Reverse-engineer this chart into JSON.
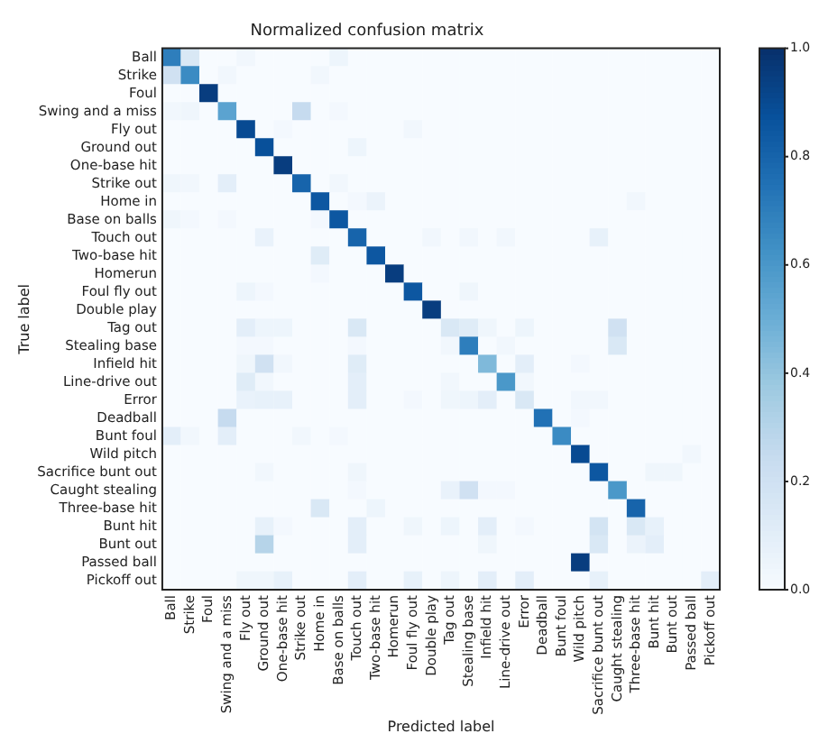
{
  "chart_data": {
    "type": "heatmap",
    "title": "Normalized confusion matrix",
    "xlabel": "Predicted label",
    "ylabel": "True label",
    "categories": [
      "Ball",
      "Strike",
      "Foul",
      "Swing and a miss",
      "Fly out",
      "Ground out",
      "One-base hit",
      "Strike out",
      "Home in",
      "Base on balls",
      "Touch out",
      "Two-base hit",
      "Homerun",
      "Foul fly out",
      "Double play",
      "Tag out",
      "Stealing base",
      "Infield hit",
      "Line-drive out",
      "Error",
      "Deadball",
      "Bunt foul",
      "Wild pitch",
      "Sacrifice bunt out",
      "Caught stealing",
      "Three-base hit",
      "Bunt hit",
      "Bunt out",
      "Passed ball",
      "Pickoff out"
    ],
    "y_categories": [
      "Ball",
      "Strike",
      "Foul",
      "Swing and a miss",
      "Fly out",
      "Ground out",
      "One-base hit",
      "Strike out",
      "Home in",
      "Base on balls",
      "Touch out",
      "Two-base hit",
      "Homerun",
      "Foul fly out",
      "Double play",
      "Tag out",
      "Stealing base",
      "Infield hit",
      "Line-drive out",
      "Error",
      "Deadball",
      "Bunt foul",
      "Wild pitch",
      "Sacrifice bunt out",
      "Caught stealing",
      "Three-base hit",
      "Bunt hit",
      "Bunt out",
      "Passed ball",
      "Pickoff out"
    ],
    "cells": [
      [
        0.7,
        0.15,
        0,
        0,
        0.03,
        0,
        0,
        0,
        0,
        0.05,
        0,
        0,
        0,
        0,
        0,
        0,
        0,
        0,
        0,
        0,
        0,
        0,
        0,
        0,
        0,
        0,
        0,
        0,
        0,
        0
      ],
      [
        0.2,
        0.65,
        0,
        0.03,
        0,
        0,
        0,
        0,
        0.03,
        0,
        0,
        0,
        0,
        0,
        0,
        0,
        0,
        0,
        0,
        0,
        0,
        0,
        0,
        0,
        0,
        0,
        0,
        0,
        0,
        0
      ],
      [
        0,
        0,
        0.95,
        0,
        0,
        0,
        0,
        0,
        0,
        0,
        0,
        0,
        0,
        0,
        0,
        0,
        0,
        0,
        0,
        0,
        0,
        0,
        0,
        0,
        0,
        0,
        0,
        0,
        0,
        0
      ],
      [
        0.03,
        0.04,
        0,
        0.55,
        0,
        0,
        0,
        0.25,
        0,
        0.02,
        0,
        0,
        0,
        0,
        0,
        0,
        0,
        0,
        0,
        0,
        0,
        0,
        0,
        0,
        0,
        0,
        0,
        0,
        0,
        0
      ],
      [
        0,
        0,
        0,
        0,
        0.9,
        0,
        0.02,
        0,
        0,
        0,
        0,
        0,
        0,
        0.03,
        0,
        0,
        0,
        0,
        0,
        0,
        0,
        0,
        0,
        0,
        0,
        0,
        0,
        0,
        0,
        0
      ],
      [
        0,
        0,
        0,
        0,
        0,
        0.88,
        0,
        0,
        0,
        0,
        0.05,
        0,
        0,
        0,
        0,
        0,
        0,
        0,
        0,
        0,
        0,
        0,
        0,
        0,
        0,
        0,
        0,
        0,
        0,
        0
      ],
      [
        0,
        0,
        0,
        0,
        0,
        0,
        0.95,
        0,
        0,
        0,
        0,
        0,
        0,
        0,
        0,
        0,
        0,
        0,
        0,
        0,
        0,
        0,
        0,
        0,
        0,
        0,
        0,
        0,
        0,
        0
      ],
      [
        0.04,
        0.03,
        0,
        0.1,
        0,
        0,
        0,
        0.8,
        0,
        0.03,
        0,
        0,
        0,
        0,
        0,
        0,
        0,
        0,
        0,
        0,
        0,
        0,
        0,
        0,
        0,
        0,
        0,
        0,
        0,
        0
      ],
      [
        0,
        0,
        0,
        0,
        0,
        0,
        0,
        0,
        0.85,
        0,
        0.02,
        0.06,
        0,
        0,
        0,
        0,
        0,
        0,
        0,
        0,
        0,
        0,
        0,
        0,
        0,
        0.03,
        0,
        0,
        0,
        0
      ],
      [
        0.04,
        0.02,
        0,
        0.02,
        0,
        0,
        0,
        0,
        0.02,
        0.85,
        0,
        0,
        0,
        0,
        0,
        0,
        0,
        0,
        0,
        0,
        0,
        0,
        0,
        0,
        0,
        0,
        0,
        0,
        0,
        0
      ],
      [
        0,
        0,
        0,
        0,
        0,
        0.07,
        0,
        0,
        0,
        0,
        0.8,
        0,
        0,
        0,
        0.03,
        0,
        0.03,
        0,
        0.03,
        0,
        0,
        0,
        0,
        0.08,
        0,
        0,
        0,
        0,
        0,
        0
      ],
      [
        0,
        0,
        0,
        0,
        0,
        0,
        0,
        0,
        0.12,
        0,
        0,
        0.85,
        0,
        0,
        0,
        0,
        0,
        0,
        0,
        0,
        0,
        0,
        0,
        0,
        0,
        0,
        0,
        0,
        0,
        0
      ],
      [
        0,
        0,
        0,
        0,
        0,
        0,
        0,
        0,
        0.02,
        0,
        0,
        0,
        0.95,
        0,
        0,
        0,
        0,
        0,
        0,
        0,
        0,
        0,
        0,
        0,
        0,
        0,
        0,
        0,
        0,
        0
      ],
      [
        0,
        0,
        0,
        0,
        0.05,
        0.02,
        0,
        0,
        0,
        0,
        0,
        0,
        0,
        0.85,
        0,
        0,
        0.04,
        0,
        0,
        0,
        0,
        0,
        0,
        0,
        0,
        0,
        0,
        0,
        0,
        0
      ],
      [
        0,
        0,
        0,
        0,
        0,
        0,
        0,
        0,
        0,
        0,
        0,
        0,
        0,
        0,
        0.95,
        0,
        0,
        0,
        0,
        0,
        0,
        0,
        0,
        0,
        0,
        0,
        0,
        0,
        0,
        0
      ],
      [
        0,
        0,
        0,
        0,
        0.1,
        0.05,
        0.05,
        0,
        0,
        0,
        0.15,
        0,
        0,
        0,
        0,
        0.15,
        0.12,
        0.04,
        0,
        0.05,
        0,
        0,
        0,
        0,
        0.2,
        0,
        0,
        0,
        0,
        0
      ],
      [
        0,
        0,
        0,
        0,
        0.02,
        0.02,
        0,
        0,
        0,
        0,
        0.02,
        0,
        0,
        0,
        0,
        0.03,
        0.7,
        0,
        0.03,
        0,
        0,
        0,
        0,
        0,
        0.15,
        0,
        0,
        0,
        0,
        0
      ],
      [
        0,
        0,
        0,
        0,
        0.04,
        0.2,
        0.03,
        0,
        0,
        0,
        0.12,
        0,
        0,
        0,
        0,
        0,
        0,
        0.45,
        0,
        0.1,
        0,
        0,
        0.02,
        0,
        0,
        0,
        0,
        0,
        0,
        0
      ],
      [
        0,
        0,
        0,
        0,
        0.12,
        0.03,
        0,
        0,
        0,
        0,
        0.1,
        0,
        0,
        0,
        0,
        0.03,
        0,
        0,
        0.6,
        0.03,
        0,
        0,
        0,
        0,
        0,
        0,
        0,
        0,
        0,
        0
      ],
      [
        0,
        0,
        0,
        0,
        0.07,
        0.08,
        0.08,
        0,
        0,
        0,
        0.1,
        0,
        0,
        0.02,
        0,
        0.04,
        0.05,
        0.1,
        0,
        0.15,
        0,
        0,
        0.03,
        0.03,
        0,
        0,
        0,
        0,
        0,
        0
      ],
      [
        0,
        0,
        0,
        0.25,
        0,
        0,
        0,
        0,
        0,
        0,
        0,
        0,
        0,
        0,
        0,
        0,
        0,
        0,
        0,
        0,
        0.75,
        0,
        0.02,
        0,
        0,
        0,
        0,
        0,
        0,
        0
      ],
      [
        0.1,
        0.03,
        0,
        0.1,
        0,
        0,
        0,
        0.03,
        0,
        0.02,
        0,
        0,
        0,
        0,
        0,
        0,
        0,
        0,
        0,
        0,
        0,
        0.65,
        0,
        0,
        0,
        0,
        0,
        0,
        0,
        0
      ],
      [
        0,
        0,
        0,
        0,
        0,
        0,
        0,
        0,
        0,
        0,
        0,
        0,
        0,
        0,
        0,
        0,
        0,
        0,
        0,
        0,
        0,
        0,
        0.9,
        0,
        0,
        0,
        0,
        0,
        0.03,
        0
      ],
      [
        0,
        0,
        0,
        0,
        0,
        0.03,
        0,
        0,
        0,
        0,
        0.04,
        0,
        0,
        0,
        0,
        0,
        0,
        0,
        0,
        0,
        0,
        0,
        0,
        0.85,
        0,
        0,
        0.04,
        0.04,
        0,
        0
      ],
      [
        0,
        0,
        0,
        0,
        0,
        0,
        0,
        0,
        0,
        0,
        0.02,
        0,
        0,
        0,
        0,
        0.07,
        0.2,
        0.02,
        0.02,
        0,
        0,
        0,
        0,
        0,
        0.6,
        0,
        0,
        0,
        0,
        0
      ],
      [
        0,
        0,
        0,
        0,
        0,
        0,
        0,
        0,
        0.15,
        0,
        0,
        0.05,
        0,
        0,
        0,
        0,
        0,
        0,
        0,
        0,
        0,
        0,
        0,
        0,
        0,
        0.8,
        0,
        0,
        0,
        0
      ],
      [
        0,
        0,
        0,
        0,
        0,
        0.08,
        0.02,
        0,
        0,
        0,
        0.1,
        0,
        0,
        0.04,
        0,
        0.05,
        0,
        0.1,
        0,
        0.02,
        0,
        0,
        0,
        0.18,
        0,
        0.15,
        0.08,
        0,
        0,
        0
      ],
      [
        0,
        0,
        0,
        0,
        0,
        0.3,
        0,
        0,
        0,
        0,
        0.1,
        0,
        0,
        0,
        0,
        0,
        0,
        0.04,
        0,
        0,
        0,
        0,
        0,
        0.15,
        0,
        0.06,
        0.1,
        0,
        0,
        0
      ],
      [
        0,
        0,
        0,
        0,
        0,
        0,
        0,
        0,
        0,
        0,
        0,
        0,
        0,
        0,
        0,
        0,
        0,
        0,
        0,
        0,
        0,
        0,
        0.95,
        0,
        0,
        0,
        0,
        0,
        0,
        0
      ],
      [
        0,
        0,
        0,
        0,
        0.04,
        0.04,
        0.08,
        0,
        0,
        0,
        0.1,
        0,
        0,
        0.08,
        0,
        0.05,
        0,
        0.1,
        0,
        0.1,
        0,
        0,
        0,
        0.08,
        0,
        0,
        0,
        0,
        0,
        0.1
      ]
    ],
    "clim": [
      0,
      1
    ],
    "cticks": [
      {
        "value": 0,
        "label": "0.0"
      },
      {
        "value": 0.2,
        "label": "0.2"
      },
      {
        "value": 0.4,
        "label": "0.4"
      },
      {
        "value": 0.6,
        "label": "0.6"
      },
      {
        "value": 0.8,
        "label": "0.8"
      },
      {
        "value": 1,
        "label": "1.0"
      }
    ]
  }
}
